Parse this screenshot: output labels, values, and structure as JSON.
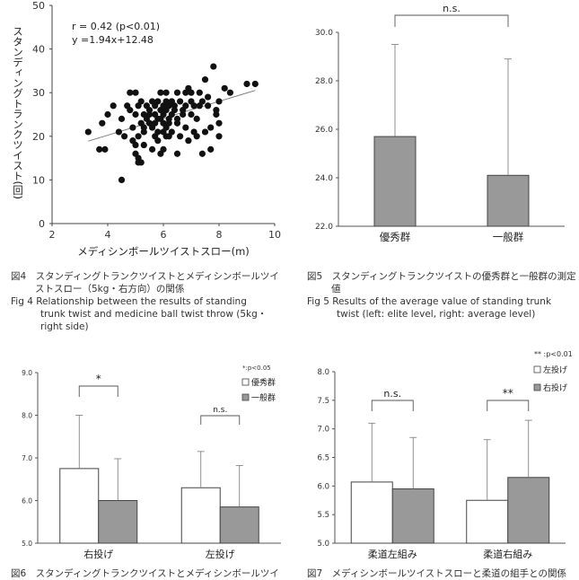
{
  "charts": {
    "fig4": {
      "axis_xlabel": "メディシンボールツイストスロー(m)",
      "axis_ylabel": "スタンディングトランクツイスト(回)",
      "annotation_r": "r = 0.42 (p<0.01)",
      "annotation_eq": "y =1.94x+12.48"
    },
    "fig5": {
      "sig": "n.s."
    },
    "fig6": {
      "sig1": "*",
      "sig2": "n.s.",
      "legend_note": "*:p<0.05",
      "legend_a": "優秀群",
      "legend_b": "一般群"
    },
    "fig7": {
      "sig1": "n.s.",
      "sig2": "**",
      "legend_note": "** :p<0.01",
      "legend_a": "左投げ",
      "legend_b": "右投げ"
    }
  },
  "captions": {
    "fig4_ja_1": "図4　スタンディングトランクツイストとメディシンボールツイ",
    "fig4_ja_2": "ストスロー（5kg・右方向）の関係",
    "fig4_en_1": "Fig 4 Relationship between the results of standing",
    "fig4_en_2": "trunk twist and medicine ball twist throw (5kg・",
    "fig4_en_3": "right side)",
    "fig5_ja_1": "図5　スタンディングトランクツイストの優秀群と一般群の測定",
    "fig5_ja_2": "値",
    "fig5_en_1": "Fig 5 Results of the average value of standing trunk",
    "fig5_en_2": "twist (left: elite level, right: average level)",
    "fig6_ja": "図6　スタンディングトランクツイストとメディシンボールツイ",
    "fig7_ja": "図7　メディシンボールツイストスローと柔道の組手との関係"
  },
  "chart_data": [
    {
      "type": "scatter",
      "xlim": [
        2,
        10
      ],
      "ylim": [
        0,
        50
      ],
      "xticks": [
        2,
        4,
        6,
        8,
        10
      ],
      "yticks": [
        0,
        10,
        20,
        30,
        40,
        50
      ],
      "xlabel": "メディシンボールツイストスロー(m)",
      "ylabel": "スタンディングトランクツイスト(回)",
      "trendline": {
        "slope": 1.94,
        "intercept": 12.48,
        "x_range": [
          3.3,
          9.3
        ]
      },
      "points": [
        [
          3.3,
          21
        ],
        [
          3.7,
          17
        ],
        [
          3.8,
          23
        ],
        [
          3.9,
          17
        ],
        [
          4.0,
          25
        ],
        [
          4.2,
          27
        ],
        [
          4.4,
          21
        ],
        [
          4.5,
          10
        ],
        [
          4.5,
          24
        ],
        [
          4.6,
          20
        ],
        [
          4.7,
          27
        ],
        [
          4.8,
          30
        ],
        [
          4.8,
          26
        ],
        [
          4.9,
          22
        ],
        [
          4.9,
          19
        ],
        [
          5.0,
          25
        ],
        [
          5.0,
          18
        ],
        [
          5.0,
          16
        ],
        [
          5.0,
          30
        ],
        [
          5.1,
          15
        ],
        [
          5.1,
          14
        ],
        [
          5.1,
          20
        ],
        [
          5.1,
          27
        ],
        [
          5.2,
          14
        ],
        [
          5.2,
          23
        ],
        [
          5.2,
          28
        ],
        [
          5.3,
          25
        ],
        [
          5.3,
          21
        ],
        [
          5.3,
          22
        ],
        [
          5.3,
          18
        ],
        [
          5.4,
          27
        ],
        [
          5.4,
          24
        ],
        [
          5.5,
          25
        ],
        [
          5.5,
          23
        ],
        [
          5.5,
          26
        ],
        [
          5.6,
          22
        ],
        [
          5.6,
          17
        ],
        [
          5.6,
          28
        ],
        [
          5.7,
          25
        ],
        [
          5.7,
          20
        ],
        [
          5.7,
          23
        ],
        [
          5.7,
          27
        ],
        [
          5.8,
          24
        ],
        [
          5.8,
          21
        ],
        [
          5.8,
          19
        ],
        [
          5.8,
          28
        ],
        [
          5.9,
          26
        ],
        [
          5.9,
          16
        ],
        [
          5.9,
          24
        ],
        [
          5.9,
          30
        ],
        [
          6.0,
          27
        ],
        [
          6.0,
          21
        ],
        [
          6.0,
          23
        ],
        [
          6.0,
          25
        ],
        [
          6.0,
          17
        ],
        [
          6.1,
          28
        ],
        [
          6.1,
          22
        ],
        [
          6.1,
          20
        ],
        [
          6.1,
          26
        ],
        [
          6.1,
          30
        ],
        [
          6.2,
          24
        ],
        [
          6.2,
          27
        ],
        [
          6.2,
          20
        ],
        [
          6.2,
          23
        ],
        [
          6.3,
          25
        ],
        [
          6.3,
          21
        ],
        [
          6.3,
          28
        ],
        [
          6.4,
          27
        ],
        [
          6.4,
          26
        ],
        [
          6.5,
          30
        ],
        [
          6.5,
          23
        ],
        [
          6.5,
          24
        ],
        [
          6.6,
          28
        ],
        [
          6.6,
          20
        ],
        [
          6.7,
          26
        ],
        [
          6.7,
          25
        ],
        [
          6.8,
          22
        ],
        [
          6.8,
          27
        ],
        [
          6.8,
          30
        ],
        [
          6.9,
          31
        ],
        [
          6.9,
          19
        ],
        [
          7.0,
          28
        ],
        [
          7.0,
          25
        ],
        [
          7.0,
          30
        ],
        [
          7.1,
          21
        ],
        [
          7.1,
          27
        ],
        [
          7.2,
          20
        ],
        [
          7.2,
          24
        ],
        [
          7.3,
          30
        ],
        [
          7.3,
          27
        ],
        [
          7.4,
          28
        ],
        [
          7.5,
          21
        ],
        [
          7.5,
          33
        ],
        [
          7.6,
          29
        ],
        [
          7.7,
          17
        ],
        [
          7.7,
          22
        ],
        [
          7.8,
          36
        ],
        [
          7.9,
          25
        ],
        [
          8.0,
          28
        ],
        [
          8.0,
          23
        ],
        [
          8.2,
          31
        ],
        [
          8.4,
          30
        ],
        [
          9.0,
          32
        ],
        [
          9.3,
          32
        ],
        [
          7.4,
          16
        ],
        [
          8.0,
          20
        ],
        [
          7.9,
          26
        ],
        [
          6.5,
          16
        ],
        [
          6.3,
          28
        ],
        [
          7.6,
          27
        ]
      ]
    },
    {
      "type": "bar",
      "categories": [
        "優秀群",
        "一般群"
      ],
      "values": [
        25.7,
        24.1
      ],
      "errors": [
        3.8,
        4.8
      ],
      "ylim": [
        22.0,
        30.0
      ],
      "yticks": [
        22.0,
        24.0,
        26.0,
        28.0,
        30.0
      ]
    },
    {
      "type": "bar",
      "categories": [
        "右投げ",
        "左投げ"
      ],
      "series": [
        {
          "name": "優秀群",
          "values": [
            6.75,
            6.3
          ],
          "errors": [
            1.25,
            0.85
          ],
          "color": "#ffffff"
        },
        {
          "name": "一般群",
          "values": [
            6.0,
            5.85
          ],
          "errors": [
            0.98,
            0.97
          ],
          "color": "#999999"
        }
      ],
      "ylim": [
        5.0,
        9.0
      ],
      "yticks": [
        5.0,
        6.0,
        7.0,
        8.0,
        9.0
      ]
    },
    {
      "type": "bar",
      "categories": [
        "柔道左組み",
        "柔道右組み"
      ],
      "series": [
        {
          "name": "左投げ",
          "values": [
            6.07,
            5.75
          ],
          "errors": [
            1.03,
            1.06
          ],
          "color": "#ffffff"
        },
        {
          "name": "右投げ",
          "values": [
            5.95,
            6.15
          ],
          "errors": [
            0.9,
            1.0
          ],
          "color": "#999999"
        }
      ],
      "ylim": [
        5.0,
        8.0
      ],
      "yticks": [
        5.0,
        5.5,
        6.0,
        6.5,
        7.0,
        7.5,
        8.0
      ]
    }
  ]
}
